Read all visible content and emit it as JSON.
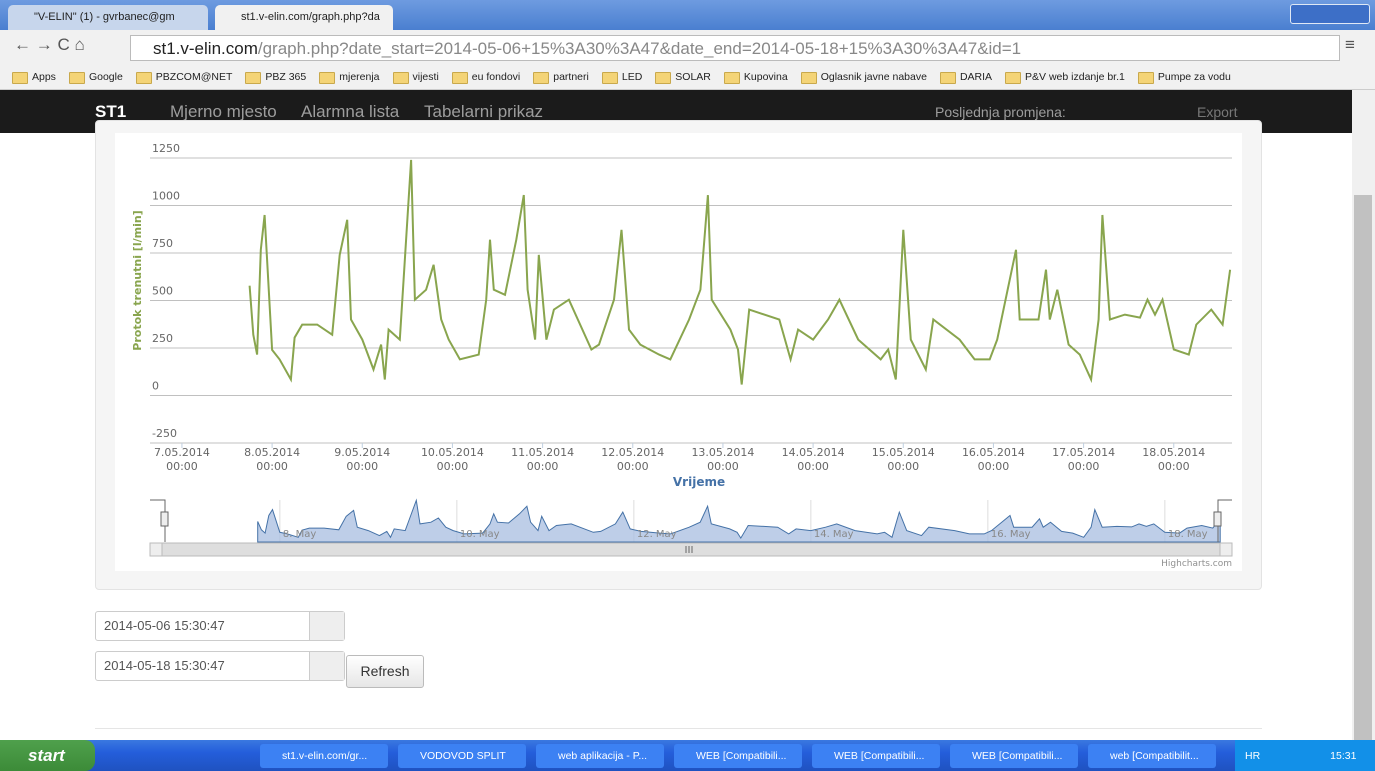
{
  "browser": {
    "tabs": [
      "\"V-ELIN\" (1) - gvrbanec@gm",
      "st1.v-elin.com/graph.php?da"
    ],
    "url_host": "st1.v-elin.com",
    "url_path": "/graph.php?date_start=2014-05-06+15%3A30%3A47&date_end=2014-05-18+15%3A30%3A47&id=1",
    "bookmarks": [
      "Apps",
      "Google",
      "PBZCOM@NET",
      "PBZ 365",
      "mjerenja",
      "vijesti",
      "eu fondovi",
      "partneri",
      "LED",
      "SOLAR",
      "Kupovina",
      "Oglasnik javne nabave",
      "DARIA",
      "P&V web izdanje br.1",
      "Pumpe za vodu"
    ]
  },
  "navbar": {
    "brand": "ST1",
    "links": [
      "Mjerno mjesto",
      "Alarmna lista",
      "Tabelarni prikaz"
    ],
    "status": "Posljednja promjena:",
    "export": "Export"
  },
  "chart_data": {
    "type": "line",
    "y_label": "Protok trenutni [l/min]",
    "x_label": "Vrijeme",
    "color": "#89a54e",
    "grid": true,
    "ylim": [
      -250,
      1250
    ],
    "yticks": [
      -250,
      0,
      250,
      500,
      750,
      1000,
      1250
    ],
    "xlim": [
      "2014-05-06 15:30",
      "2014-05-18 15:30"
    ],
    "xticks": [
      {
        "value": "2014-05-07 00:00",
        "label": [
          "7.05.2014",
          "00:00"
        ]
      },
      {
        "value": "2014-05-08 00:00",
        "label": [
          "8.05.2014",
          "00:00"
        ]
      },
      {
        "value": "2014-05-09 00:00",
        "label": [
          "9.05.2014",
          "00:00"
        ]
      },
      {
        "value": "2014-05-10 00:00",
        "label": [
          "10.05.2014",
          "00:00"
        ]
      },
      {
        "value": "2014-05-11 00:00",
        "label": [
          "11.05.2014",
          "00:00"
        ]
      },
      {
        "value": "2014-05-12 00:00",
        "label": [
          "12.05.2014",
          "00:00"
        ]
      },
      {
        "value": "2014-05-13 00:00",
        "label": [
          "13.05.2014",
          "00:00"
        ]
      },
      {
        "value": "2014-05-14 00:00",
        "label": [
          "14.05.2014",
          "00:00"
        ]
      },
      {
        "value": "2014-05-15 00:00",
        "label": [
          "15.05.2014",
          "00:00"
        ]
      },
      {
        "value": "2014-05-16 00:00",
        "label": [
          "16.05.2014",
          "00:00"
        ]
      },
      {
        "value": "2014-05-17 00:00",
        "label": [
          "17.05.2014",
          "00:00"
        ]
      },
      {
        "value": "2014-05-18 00:00",
        "label": [
          "18.05.2014",
          "00:00"
        ]
      }
    ],
    "x": [
      "2014-05-07 18:00",
      "2014-05-07 19:00",
      "2014-05-07 20:00",
      "2014-05-07 21:00",
      "2014-05-07 22:00",
      "2014-05-08 00:00",
      "2014-05-08 02:00",
      "2014-05-08 05:00",
      "2014-05-08 06:00",
      "2014-05-08 08:00",
      "2014-05-08 12:00",
      "2014-05-08 16:00",
      "2014-05-08 18:00",
      "2014-05-08 20:00",
      "2014-05-08 21:00",
      "2014-05-09 00:00",
      "2014-05-09 03:00",
      "2014-05-09 05:00",
      "2014-05-09 06:00",
      "2014-05-09 07:00",
      "2014-05-09 10:00",
      "2014-05-09 11:00",
      "2014-05-09 13:00",
      "2014-05-09 14:00",
      "2014-05-09 17:00",
      "2014-05-09 19:00",
      "2014-05-09 21:00",
      "2014-05-09 23:00",
      "2014-05-10 02:00",
      "2014-05-10 07:00",
      "2014-05-10 09:00",
      "2014-05-10 10:00",
      "2014-05-10 11:00",
      "2014-05-10 14:00",
      "2014-05-10 17:00",
      "2014-05-10 19:00",
      "2014-05-10 20:00",
      "2014-05-10 22:00",
      "2014-05-10 23:00",
      "2014-05-11 01:00",
      "2014-05-11 03:00",
      "2014-05-11 07:00",
      "2014-05-11 13:00",
      "2014-05-11 15:00",
      "2014-05-11 19:00",
      "2014-05-11 21:00",
      "2014-05-11 23:00",
      "2014-05-12 02:00",
      "2014-05-12 07:00",
      "2014-05-12 10:00",
      "2014-05-12 15:00",
      "2014-05-12 18:00",
      "2014-05-12 20:00",
      "2014-05-12 21:00",
      "2014-05-13 02:00",
      "2014-05-13 04:00",
      "2014-05-13 05:00",
      "2014-05-13 07:00",
      "2014-05-13 15:00",
      "2014-05-13 18:00",
      "2014-05-13 20:00",
      "2014-05-14 00:00",
      "2014-05-14 04:00",
      "2014-05-14 07:00",
      "2014-05-14 12:00",
      "2014-05-14 18:00",
      "2014-05-14 20:00",
      "2014-05-14 22:00",
      "2014-05-15 00:00",
      "2014-05-15 02:00",
      "2014-05-15 06:00",
      "2014-05-15 08:00",
      "2014-05-15 15:00",
      "2014-05-15 19:00",
      "2014-05-15 23:00",
      "2014-05-16 01:00",
      "2014-05-16 06:00",
      "2014-05-16 07:00",
      "2014-05-16 12:00",
      "2014-05-16 14:00",
      "2014-05-16 15:00",
      "2014-05-16 17:00",
      "2014-05-16 20:00",
      "2014-05-16 23:00",
      "2014-05-17 02:00",
      "2014-05-17 04:00",
      "2014-05-17 05:00",
      "2014-05-17 07:00",
      "2014-05-17 11:00",
      "2014-05-17 15:00",
      "2014-05-17 17:00",
      "2014-05-17 19:00",
      "2014-05-17 21:00",
      "2014-05-18 00:00",
      "2014-05-18 04:00",
      "2014-05-18 06:00",
      "2014-05-18 10:00",
      "2014-05-18 13:00",
      "2014-05-18 15:00"
    ],
    "values": [
      578,
      320,
      215,
      767,
      950,
      240,
      190,
      84,
      305,
      373,
      373,
      320,
      740,
      925,
      400,
      294,
      137,
      268,
      84,
      347,
      294,
      610,
      1240,
      504,
      557,
      688,
      400,
      294,
      190,
      215,
      504,
      820,
      557,
      530,
      820,
      1055,
      557,
      294,
      740,
      294,
      452,
      504,
      242,
      268,
      504,
      872,
      347,
      268,
      215,
      190,
      400,
      557,
      1055,
      504,
      347,
      242,
      58,
      452,
      400,
      190,
      347,
      294,
      400,
      504,
      294,
      190,
      242,
      84,
      872,
      294,
      137,
      400,
      294,
      190,
      190,
      294,
      767,
      400,
      400,
      662,
      400,
      557,
      268,
      215,
      84,
      400,
      950,
      400,
      426,
      410,
      504,
      426,
      504,
      242,
      215,
      373,
      452,
      373,
      662
    ],
    "navigator": {
      "color": "#a8bde0",
      "labels": [
        {
          "value": "2014-05-08 00:00",
          "label": "8. May"
        },
        {
          "value": "2014-05-10 00:00",
          "label": "10. May"
        },
        {
          "value": "2014-05-12 00:00",
          "label": "12. May"
        },
        {
          "value": "2014-05-14 00:00",
          "label": "14. May"
        },
        {
          "value": "2014-05-16 00:00",
          "label": "16. May"
        },
        {
          "value": "2014-05-18 00:00",
          "label": "18. May"
        }
      ]
    },
    "credit": "Highcharts.com"
  },
  "form": {
    "start": "2014-05-06 15:30:47",
    "end": "2014-05-18 15:30:47",
    "button": "Refresh"
  },
  "taskbar": {
    "start": "start",
    "items": [
      "st1.v-elin.com/gr...",
      "VODOVOD SPLIT",
      "web aplikacija - P...",
      "WEB [Compatibili...",
      "WEB [Compatibili...",
      "WEB [Compatibili...",
      "web [Compatibilit..."
    ],
    "lang": "HR",
    "clock": "15:31"
  }
}
